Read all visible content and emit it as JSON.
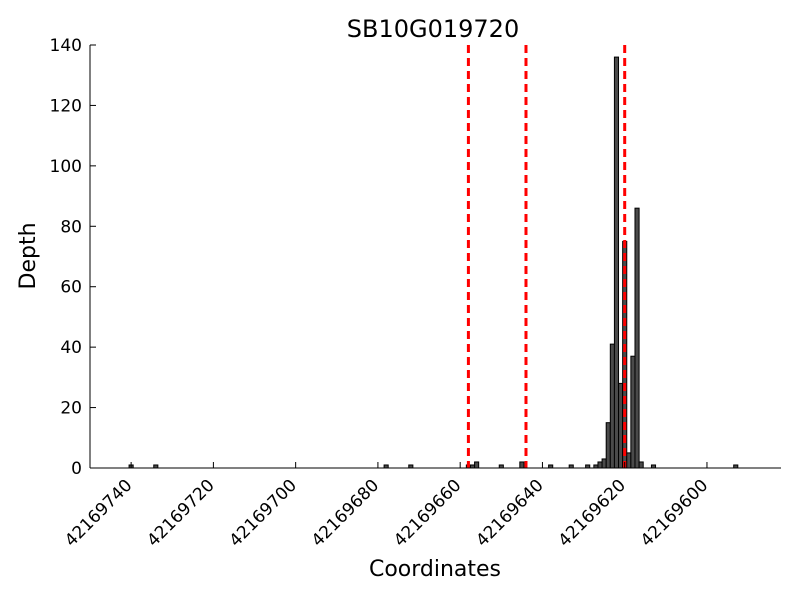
{
  "chart_data": {
    "type": "bar",
    "title": "SB10G019720",
    "xlabel": "Coordinates",
    "ylabel": "Depth",
    "x_reversed": true,
    "xlim": [
      42169750,
      42169582
    ],
    "ylim": [
      0,
      140
    ],
    "bar_width": 1,
    "x_ticks": [
      42169740,
      42169720,
      42169700,
      42169680,
      42169660,
      42169640,
      42169620,
      42169600
    ],
    "x_tick_labels": [
      "42169740",
      "42169720",
      "42169700",
      "42169680",
      "42169660",
      "42169640",
      "42169620",
      "42169600"
    ],
    "y_ticks": [
      0,
      20,
      40,
      60,
      80,
      100,
      120,
      140
    ],
    "y_tick_labels": [
      "0",
      "20",
      "40",
      "60",
      "80",
      "100",
      "120",
      "140"
    ],
    "grid": false,
    "marker_lines": {
      "color": "#ff0000",
      "style": "dashed",
      "x": [
        42169658,
        42169644,
        42169620
      ]
    },
    "series": [
      {
        "color": "#4a4a4a",
        "points": [
          {
            "x": 42169740,
            "y": 1
          },
          {
            "x": 42169734,
            "y": 1
          },
          {
            "x": 42169678,
            "y": 1
          },
          {
            "x": 42169672,
            "y": 1
          },
          {
            "x": 42169658,
            "y": 1
          },
          {
            "x": 42169657,
            "y": 1
          },
          {
            "x": 42169656,
            "y": 2
          },
          {
            "x": 42169650,
            "y": 1
          },
          {
            "x": 42169645,
            "y": 2
          },
          {
            "x": 42169638,
            "y": 1
          },
          {
            "x": 42169633,
            "y": 1
          },
          {
            "x": 42169629,
            "y": 1
          },
          {
            "x": 42169627,
            "y": 1
          },
          {
            "x": 42169626,
            "y": 2
          },
          {
            "x": 42169625,
            "y": 3
          },
          {
            "x": 42169624,
            "y": 15
          },
          {
            "x": 42169623,
            "y": 41
          },
          {
            "x": 42169622,
            "y": 136
          },
          {
            "x": 42169621,
            "y": 28
          },
          {
            "x": 42169620,
            "y": 75
          },
          {
            "x": 42169619,
            "y": 5
          },
          {
            "x": 42169618,
            "y": 37
          },
          {
            "x": 42169617,
            "y": 86
          },
          {
            "x": 42169616,
            "y": 2
          },
          {
            "x": 42169613,
            "y": 1
          },
          {
            "x": 42169593,
            "y": 1
          }
        ]
      }
    ]
  }
}
